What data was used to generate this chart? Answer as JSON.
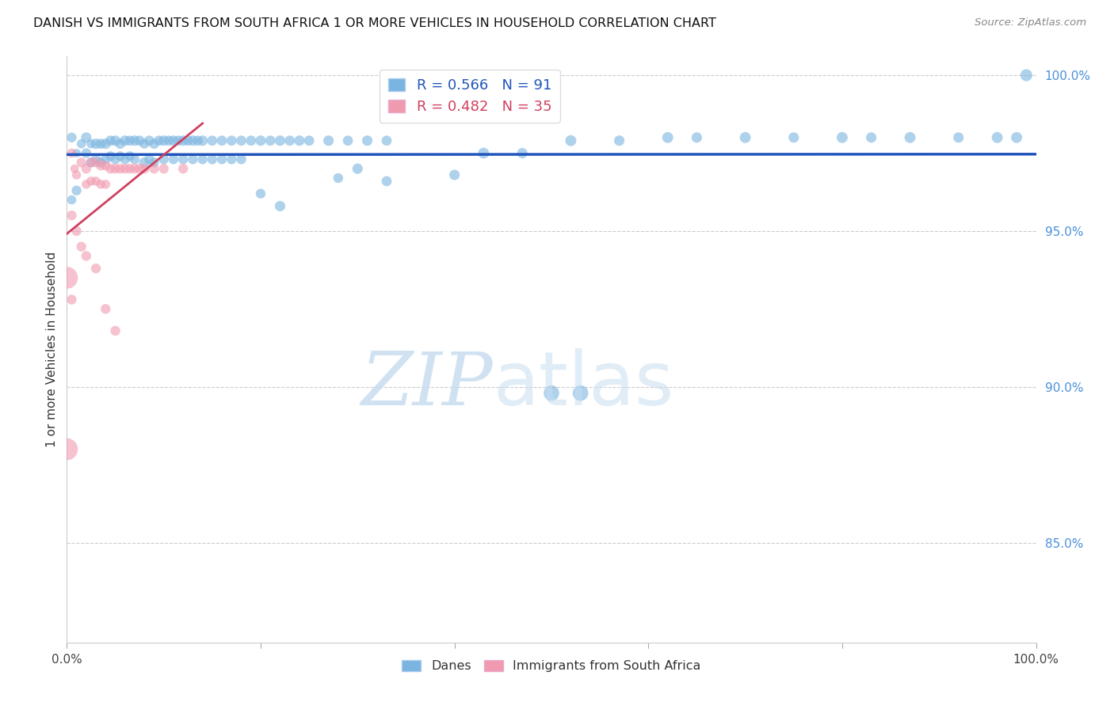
{
  "title": "DANISH VS IMMIGRANTS FROM SOUTH AFRICA 1 OR MORE VEHICLES IN HOUSEHOLD CORRELATION CHART",
  "source": "Source: ZipAtlas.com",
  "ylabel": "1 or more Vehicles in Household",
  "r_danes": 0.566,
  "n_danes": 91,
  "r_immigrants": 0.482,
  "n_immigrants": 35,
  "danes_color": "#7ab4e0",
  "immigrants_color": "#f09ab0",
  "danes_line_color": "#2255bb",
  "immigrants_line_color": "#d04060",
  "watermark_zip": "ZIP",
  "watermark_atlas": "atlas",
  "watermark_color_zip": "#c8ddf0",
  "watermark_color_atlas": "#c8ddf0",
  "legend_danes": "Danes",
  "legend_immigrants": "Immigrants from South Africa",
  "xmin": 0.0,
  "xmax": 1.0,
  "ymin": 0.818,
  "ymax": 1.006,
  "right_yticks": [
    0.85,
    0.9,
    0.95,
    1.0
  ],
  "right_yticklabels": [
    "85.0%",
    "90.0%",
    "95.0%",
    "100.0%"
  ],
  "danes_x": [
    0.005,
    0.01,
    0.015,
    0.02,
    0.02,
    0.025,
    0.025,
    0.03,
    0.03,
    0.035,
    0.035,
    0.04,
    0.04,
    0.045,
    0.045,
    0.05,
    0.05,
    0.055,
    0.055,
    0.06,
    0.06,
    0.065,
    0.065,
    0.07,
    0.07,
    0.075,
    0.08,
    0.08,
    0.085,
    0.085,
    0.09,
    0.09,
    0.095,
    0.1,
    0.1,
    0.105,
    0.11,
    0.11,
    0.115,
    0.12,
    0.12,
    0.125,
    0.13,
    0.13,
    0.135,
    0.14,
    0.14,
    0.15,
    0.15,
    0.16,
    0.16,
    0.17,
    0.17,
    0.18,
    0.18,
    0.19,
    0.2,
    0.21,
    0.22,
    0.23,
    0.24,
    0.25,
    0.27,
    0.29,
    0.31,
    0.33,
    0.4,
    0.43,
    0.47,
    0.52,
    0.57,
    0.62,
    0.65,
    0.7,
    0.75,
    0.8,
    0.83,
    0.87,
    0.92,
    0.96,
    0.98,
    0.005,
    0.01,
    0.2,
    0.22,
    0.28,
    0.3,
    0.33,
    0.5,
    0.53,
    0.99
  ],
  "danes_y": [
    0.98,
    0.975,
    0.978,
    0.98,
    0.975,
    0.978,
    0.972,
    0.978,
    0.973,
    0.978,
    0.972,
    0.978,
    0.973,
    0.979,
    0.974,
    0.979,
    0.973,
    0.978,
    0.974,
    0.979,
    0.973,
    0.979,
    0.974,
    0.979,
    0.973,
    0.979,
    0.978,
    0.972,
    0.979,
    0.973,
    0.978,
    0.972,
    0.979,
    0.979,
    0.973,
    0.979,
    0.979,
    0.973,
    0.979,
    0.979,
    0.973,
    0.979,
    0.979,
    0.973,
    0.979,
    0.979,
    0.973,
    0.979,
    0.973,
    0.979,
    0.973,
    0.979,
    0.973,
    0.979,
    0.973,
    0.979,
    0.979,
    0.979,
    0.979,
    0.979,
    0.979,
    0.979,
    0.979,
    0.979,
    0.979,
    0.979,
    0.968,
    0.975,
    0.975,
    0.979,
    0.979,
    0.98,
    0.98,
    0.98,
    0.98,
    0.98,
    0.98,
    0.98,
    0.98,
    0.98,
    0.98,
    0.96,
    0.963,
    0.962,
    0.958,
    0.967,
    0.97,
    0.966,
    0.898,
    0.898,
    1.0
  ],
  "danes_sizes": [
    80,
    60,
    70,
    90,
    80,
    70,
    80,
    90,
    80,
    85,
    80,
    90,
    80,
    85,
    80,
    90,
    80,
    85,
    80,
    90,
    80,
    85,
    80,
    90,
    80,
    85,
    80,
    90,
    85,
    80,
    85,
    80,
    85,
    90,
    80,
    85,
    90,
    80,
    85,
    90,
    80,
    85,
    90,
    80,
    85,
    90,
    80,
    85,
    80,
    85,
    80,
    85,
    80,
    85,
    80,
    85,
    90,
    85,
    90,
    85,
    90,
    85,
    90,
    85,
    90,
    85,
    90,
    100,
    90,
    100,
    90,
    100,
    90,
    100,
    90,
    100,
    90,
    100,
    90,
    100,
    100,
    70,
    80,
    80,
    90,
    80,
    90,
    85,
    200,
    200,
    120
  ],
  "immigrants_x": [
    0.005,
    0.008,
    0.01,
    0.015,
    0.02,
    0.02,
    0.025,
    0.025,
    0.03,
    0.03,
    0.035,
    0.035,
    0.04,
    0.04,
    0.045,
    0.05,
    0.055,
    0.06,
    0.065,
    0.07,
    0.075,
    0.08,
    0.09,
    0.1,
    0.12,
    0.005,
    0.01,
    0.015,
    0.02,
    0.03,
    0.04,
    0.05,
    0.0,
    0.005,
    0.0
  ],
  "immigrants_y": [
    0.975,
    0.97,
    0.968,
    0.972,
    0.97,
    0.965,
    0.972,
    0.966,
    0.972,
    0.966,
    0.971,
    0.965,
    0.971,
    0.965,
    0.97,
    0.97,
    0.97,
    0.97,
    0.97,
    0.97,
    0.97,
    0.97,
    0.97,
    0.97,
    0.97,
    0.955,
    0.95,
    0.945,
    0.942,
    0.938,
    0.925,
    0.918,
    0.935,
    0.928,
    0.88
  ],
  "immigrants_sizes": [
    70,
    60,
    70,
    80,
    80,
    70,
    80,
    70,
    80,
    70,
    80,
    70,
    80,
    70,
    80,
    80,
    80,
    80,
    80,
    80,
    80,
    80,
    80,
    80,
    80,
    80,
    80,
    80,
    80,
    80,
    80,
    80,
    400,
    80,
    400
  ]
}
